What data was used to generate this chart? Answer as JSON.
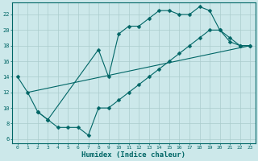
{
  "xlabel": "Humidex (Indice chaleur)",
  "bg_color": "#cce8ea",
  "grid_color": "#aacccc",
  "line_color": "#006666",
  "xlim": [
    -0.5,
    23.5
  ],
  "ylim": [
    5.5,
    23.5
  ],
  "xticks": [
    0,
    1,
    2,
    3,
    4,
    5,
    6,
    7,
    8,
    9,
    10,
    11,
    12,
    13,
    14,
    15,
    16,
    17,
    18,
    19,
    20,
    21,
    22,
    23
  ],
  "yticks": [
    6,
    8,
    10,
    12,
    14,
    16,
    18,
    20,
    22
  ],
  "line1_x": [
    0,
    1,
    2,
    3,
    8,
    9,
    10,
    11,
    12,
    13,
    14,
    15,
    16,
    17,
    18,
    19,
    20,
    21,
    22,
    23
  ],
  "line1_y": [
    14,
    12,
    9.5,
    8.5,
    17.5,
    14,
    19.5,
    20.5,
    20.5,
    21.5,
    22.5,
    22.5,
    22,
    22,
    23,
    22.5,
    20,
    19,
    18,
    18
  ],
  "line2_x": [
    1,
    23
  ],
  "line2_y": [
    12,
    18
  ],
  "line3_x": [
    2,
    3,
    4,
    5,
    6,
    7,
    8,
    9,
    10,
    11,
    12,
    13,
    14,
    15,
    16,
    17,
    18,
    19,
    20,
    21,
    22,
    23
  ],
  "line3_y": [
    9.5,
    8.5,
    7.5,
    7.5,
    7.5,
    6.5,
    10,
    10,
    11,
    12,
    13,
    14,
    15,
    16,
    17,
    18,
    19,
    20,
    20,
    18.5,
    18,
    18
  ]
}
